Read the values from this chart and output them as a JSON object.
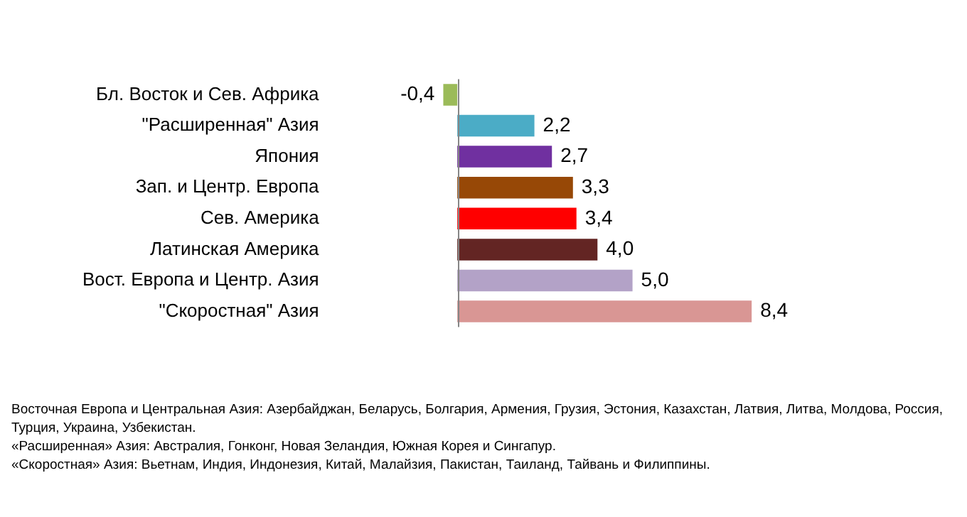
{
  "chart_data": {
    "type": "bar",
    "orientation": "horizontal",
    "categories": [
      "Бл. Восток и Сев. Африка",
      "\"Расширенная\" Азия",
      "Япония",
      "Зап. и Центр. Европа",
      "Сев. Америка",
      "Латинская Америка",
      "Вост. Европа и Центр. Азия",
      "\"Скоростная\" Азия"
    ],
    "values": [
      -0.4,
      2.2,
      2.7,
      3.3,
      3.4,
      4.0,
      5.0,
      8.4
    ],
    "value_labels": [
      "-0,4",
      "2,2",
      "2,7",
      "3,3",
      "3,4",
      "4,0",
      "5,0",
      "8,4"
    ],
    "colors": [
      "#9bbb59",
      "#4bacc6",
      "#7030a0",
      "#974806",
      "#ff0000",
      "#632523",
      "#b3a2c7",
      "#d99694"
    ],
    "annotations": [
      "Восточная Европа и Центральная Азия: Азербайджан, Беларусь, Болгария, Армения, Грузия, Эстония, Казахстан, Латвия, Литва, Молдова, Россия, Турция, Украина, Узбекистан.",
      "«Расширенная» Азия: Австралия, Гонконг, Новая Зеландия, Южная Корея и Сингапур.",
      "«Скоростная» Азия: Вьетнам, Индия, Индонезия, Китай, Малайзия, Пакистан, Таиланд, Тайвань и Филиппины."
    ]
  }
}
